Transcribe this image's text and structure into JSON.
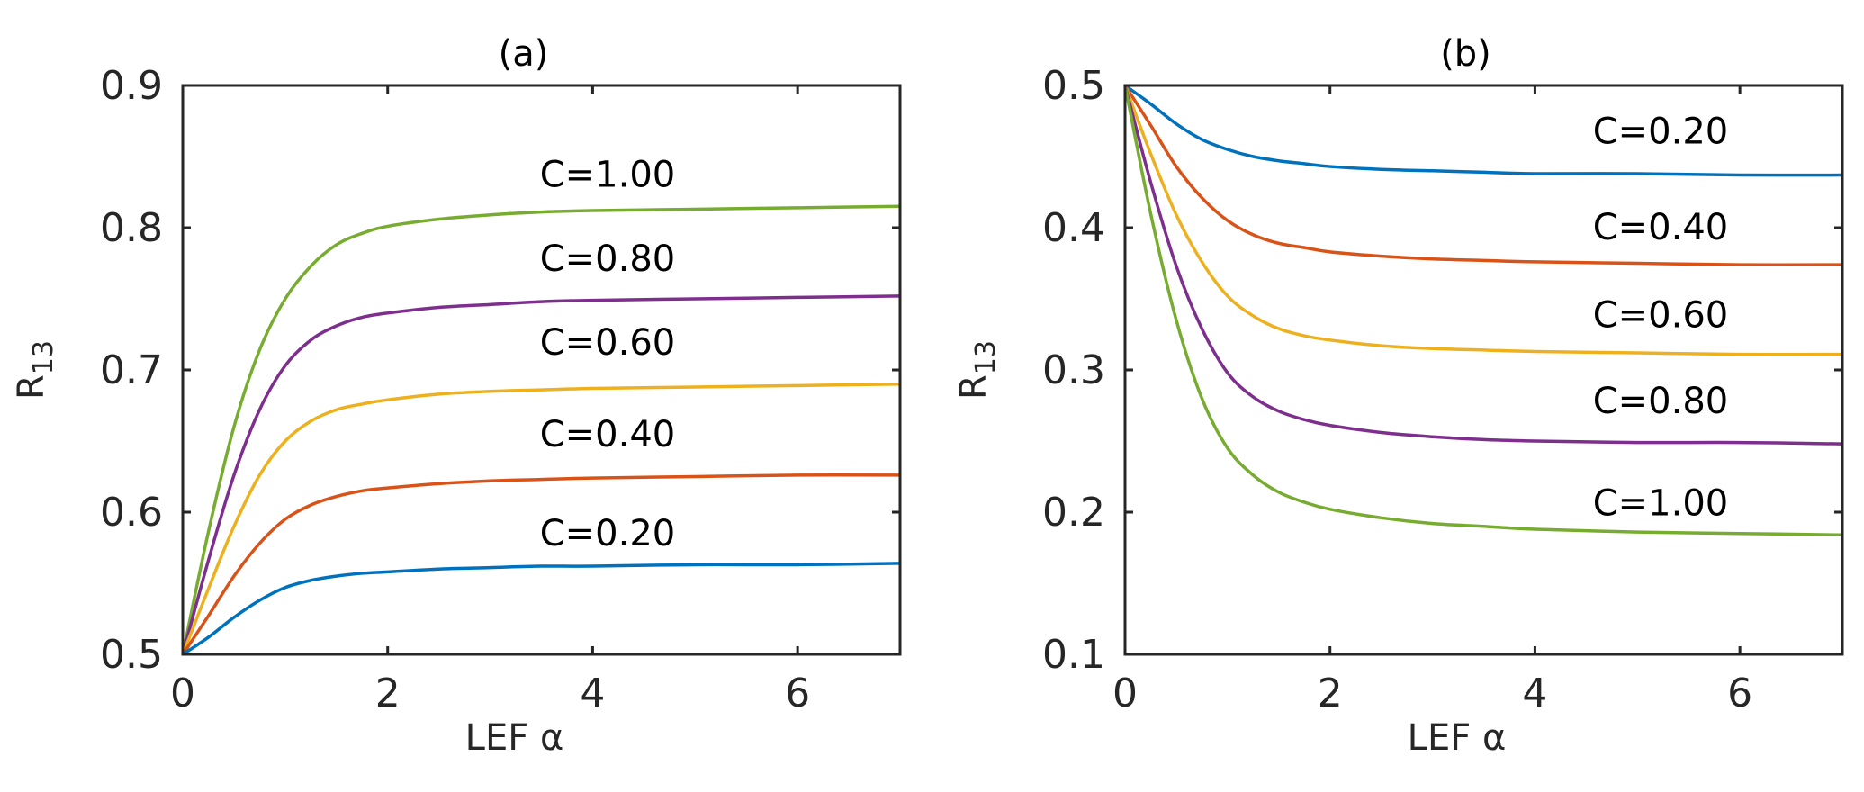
{
  "chart_data": [
    {
      "type": "line",
      "title": "(a)",
      "xlabel": "LEF α",
      "ylabel": "R",
      "ylabel_sub": "13",
      "xlim": [
        0,
        7
      ],
      "ylim": [
        0.5,
        0.9
      ],
      "x_ticks": [
        0,
        2,
        4,
        6
      ],
      "x_tick_labels": [
        "0",
        "2",
        "4",
        "6"
      ],
      "y_ticks": [
        0.5,
        0.6,
        0.7,
        0.8,
        0.9
      ],
      "y_tick_labels": [
        "0.5",
        "0.6",
        "0.7",
        "0.8",
        "0.9"
      ],
      "x": [
        0,
        0.25,
        0.5,
        0.75,
        1,
        1.25,
        1.5,
        1.75,
        2,
        2.5,
        3,
        3.5,
        4,
        5,
        6,
        7
      ],
      "series": [
        {
          "name": "C=1.00",
          "color": "#77AC30",
          "values": [
            0.5,
            0.586,
            0.66,
            0.714,
            0.75,
            0.773,
            0.788,
            0.796,
            0.801,
            0.806,
            0.809,
            0.811,
            0.812,
            0.813,
            0.814,
            0.815
          ]
        },
        {
          "name": "C=0.80",
          "color": "#7E2F8E",
          "values": [
            0.5,
            0.566,
            0.626,
            0.672,
            0.703,
            0.721,
            0.731,
            0.737,
            0.74,
            0.744,
            0.746,
            0.748,
            0.749,
            0.75,
            0.751,
            0.752
          ]
        },
        {
          "name": "C=0.60",
          "color": "#EDB120",
          "values": [
            0.5,
            0.546,
            0.59,
            0.626,
            0.65,
            0.664,
            0.672,
            0.676,
            0.679,
            0.683,
            0.685,
            0.686,
            0.687,
            0.688,
            0.689,
            0.69
          ]
        },
        {
          "name": "C=0.40",
          "color": "#D95319",
          "values": [
            0.5,
            0.527,
            0.555,
            0.578,
            0.595,
            0.605,
            0.611,
            0.615,
            0.617,
            0.62,
            0.622,
            0.623,
            0.624,
            0.625,
            0.626,
            0.626
          ]
        },
        {
          "name": "C=0.20",
          "color": "#0072BD",
          "values": [
            0.5,
            0.512,
            0.526,
            0.538,
            0.547,
            0.552,
            0.555,
            0.557,
            0.558,
            0.56,
            0.561,
            0.562,
            0.562,
            0.563,
            0.563,
            0.564
          ]
        }
      ]
    },
    {
      "type": "line",
      "title": "(b)",
      "xlabel": "LEF α",
      "ylabel": "R",
      "ylabel_sub": "13",
      "xlim": [
        0,
        7
      ],
      "ylim": [
        0.1,
        0.5
      ],
      "x_ticks": [
        0,
        2,
        4,
        6
      ],
      "x_tick_labels": [
        "0",
        "2",
        "4",
        "6"
      ],
      "y_ticks": [
        0.1,
        0.2,
        0.3,
        0.4,
        0.5
      ],
      "y_tick_labels": [
        "0.1",
        "0.2",
        "0.3",
        "0.4",
        "0.5"
      ],
      "x": [
        0,
        0.25,
        0.5,
        0.75,
        1,
        1.25,
        1.5,
        1.75,
        2,
        2.5,
        3,
        3.5,
        4,
        5,
        6,
        7
      ],
      "series": [
        {
          "name": "C=0.20",
          "color": "#0072BD",
          "values": [
            0.5,
            0.487,
            0.473,
            0.462,
            0.455,
            0.45,
            0.447,
            0.445,
            0.443,
            0.441,
            0.44,
            0.439,
            0.438,
            0.438,
            0.437,
            0.437
          ]
        },
        {
          "name": "C=0.40",
          "color": "#D95319",
          "values": [
            0.5,
            0.472,
            0.443,
            0.421,
            0.405,
            0.395,
            0.389,
            0.386,
            0.383,
            0.38,
            0.378,
            0.377,
            0.376,
            0.375,
            0.374,
            0.374
          ]
        },
        {
          "name": "C=0.60",
          "color": "#EDB120",
          "values": [
            0.5,
            0.452,
            0.409,
            0.376,
            0.352,
            0.338,
            0.329,
            0.324,
            0.321,
            0.317,
            0.315,
            0.314,
            0.313,
            0.312,
            0.311,
            0.311
          ]
        },
        {
          "name": "C=0.80",
          "color": "#7E2F8E",
          "values": [
            0.5,
            0.432,
            0.373,
            0.329,
            0.298,
            0.281,
            0.271,
            0.265,
            0.261,
            0.256,
            0.253,
            0.251,
            0.25,
            0.249,
            0.249,
            0.248
          ]
        },
        {
          "name": "C=1.00",
          "color": "#77AC30",
          "values": [
            0.5,
            0.41,
            0.335,
            0.28,
            0.245,
            0.226,
            0.214,
            0.207,
            0.202,
            0.196,
            0.192,
            0.19,
            0.188,
            0.186,
            0.185,
            0.184
          ]
        }
      ]
    }
  ]
}
